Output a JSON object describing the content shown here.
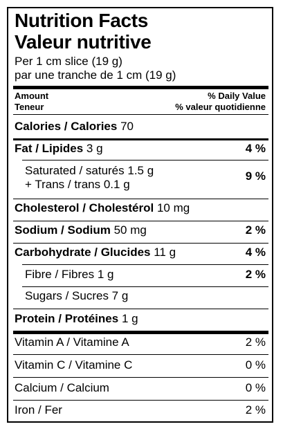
{
  "title_en": "Nutrition Facts",
  "title_fr": "Valeur nutritive",
  "serving_en": "Per 1 cm slice (19 g)",
  "serving_fr": "par une tranche de 1 cm (19 g)",
  "header": {
    "amount_en": "Amount",
    "amount_fr": "Teneur",
    "dv_en": "% Daily Value",
    "dv_fr": "% valeur quotidienne"
  },
  "calories": {
    "label": "Calories / Calories",
    "value": "70"
  },
  "nutrients": {
    "fat": {
      "label": "Fat / Lipides",
      "amount": "3 g",
      "dv": "4 %"
    },
    "saturated": {
      "label": "Saturated / saturés 1.5 g",
      "label2": "+ Trans / trans 0.1 g",
      "dv": "9 %"
    },
    "cholesterol": {
      "label": "Cholesterol / Cholestérol",
      "amount": "10 mg"
    },
    "sodium": {
      "label": "Sodium / Sodium",
      "amount": "50 mg",
      "dv": "2 %"
    },
    "carbohydrate": {
      "label": "Carbohydrate / Glucides",
      "amount": "11 g",
      "dv": "4 %"
    },
    "fibre": {
      "label": "Fibre / Fibres 1 g",
      "dv": "2 %"
    },
    "sugars": {
      "label": "Sugars / Sucres 7 g"
    },
    "protein": {
      "label": "Protein / Protéines",
      "amount": "1 g"
    }
  },
  "vitamins": [
    {
      "label": "Vitamin A / Vitamine A",
      "dv": "2 %"
    },
    {
      "label": "Vitamin C / Vitamine C",
      "dv": "0 %"
    },
    {
      "label": "Calcium / Calcium",
      "dv": "0 %"
    },
    {
      "label": "Iron / Fer",
      "dv": "2 %"
    }
  ]
}
